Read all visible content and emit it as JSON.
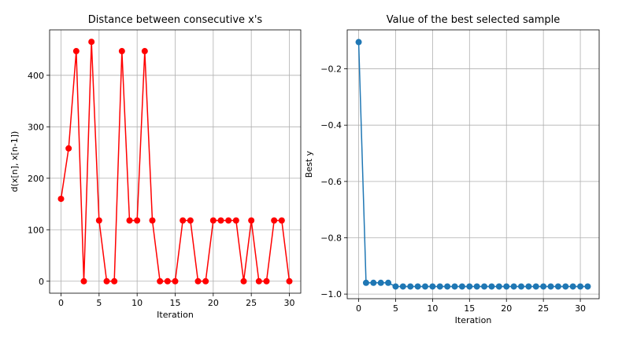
{
  "chart_data": [
    {
      "type": "line",
      "title": "Distance between consecutive x's",
      "x_label": "Iteration",
      "y_label": "d(x[n], x[n-1])",
      "x": [
        0,
        1,
        2,
        3,
        4,
        5,
        6,
        7,
        8,
        9,
        10,
        11,
        12,
        13,
        14,
        15,
        16,
        17,
        18,
        19,
        20,
        21,
        22,
        23,
        24,
        25,
        26,
        27,
        28,
        29,
        30
      ],
      "series": [
        {
          "color": "#ff0000",
          "values": [
            160,
            258,
            447,
            0,
            465,
            118,
            0,
            0,
            447,
            118,
            118,
            447,
            118,
            0,
            0,
            0,
            118,
            118,
            0,
            0,
            118,
            118,
            118,
            118,
            0,
            118,
            0,
            0,
            118,
            118,
            0
          ]
        }
      ],
      "xlim": [
        -1.5,
        31.5
      ],
      "ylim": [
        -23.25,
        488.25
      ],
      "xticks": [
        0,
        5,
        10,
        15,
        20,
        25,
        30
      ],
      "yticks": [
        0,
        100,
        200,
        300,
        400
      ],
      "grid": true
    },
    {
      "type": "line",
      "title": "Value of the best selected sample",
      "x_label": "Iteration",
      "y_label": "Best y",
      "x": [
        0,
        1,
        2,
        3,
        4,
        5,
        6,
        7,
        8,
        9,
        10,
        11,
        12,
        13,
        14,
        15,
        16,
        17,
        18,
        19,
        20,
        21,
        22,
        23,
        24,
        25,
        26,
        27,
        28,
        29,
        30,
        31
      ],
      "series": [
        {
          "color": "#1f77b4",
          "values": [
            -0.105,
            -0.96,
            -0.96,
            -0.96,
            -0.96,
            -0.973,
            -0.973,
            -0.973,
            -0.973,
            -0.973,
            -0.973,
            -0.973,
            -0.973,
            -0.973,
            -0.973,
            -0.973,
            -0.973,
            -0.973,
            -0.973,
            -0.973,
            -0.973,
            -0.973,
            -0.973,
            -0.973,
            -0.973,
            -0.973,
            -0.973,
            -0.973,
            -0.973,
            -0.973,
            -0.973,
            -0.973
          ]
        }
      ],
      "xlim": [
        -1.55,
        32.55
      ],
      "ylim": [
        -1.0164,
        -0.0616
      ],
      "xticks": [
        0,
        5,
        10,
        15,
        20,
        25,
        30
      ],
      "yticks": [
        {
          "value": -1.0,
          "label": "−1.0"
        },
        {
          "value": -0.8,
          "label": "−0.8"
        },
        {
          "value": -0.6,
          "label": "−0.6"
        },
        {
          "value": -0.4,
          "label": "−0.4"
        },
        {
          "value": -0.2,
          "label": "−0.2"
        }
      ],
      "grid": true
    }
  ]
}
